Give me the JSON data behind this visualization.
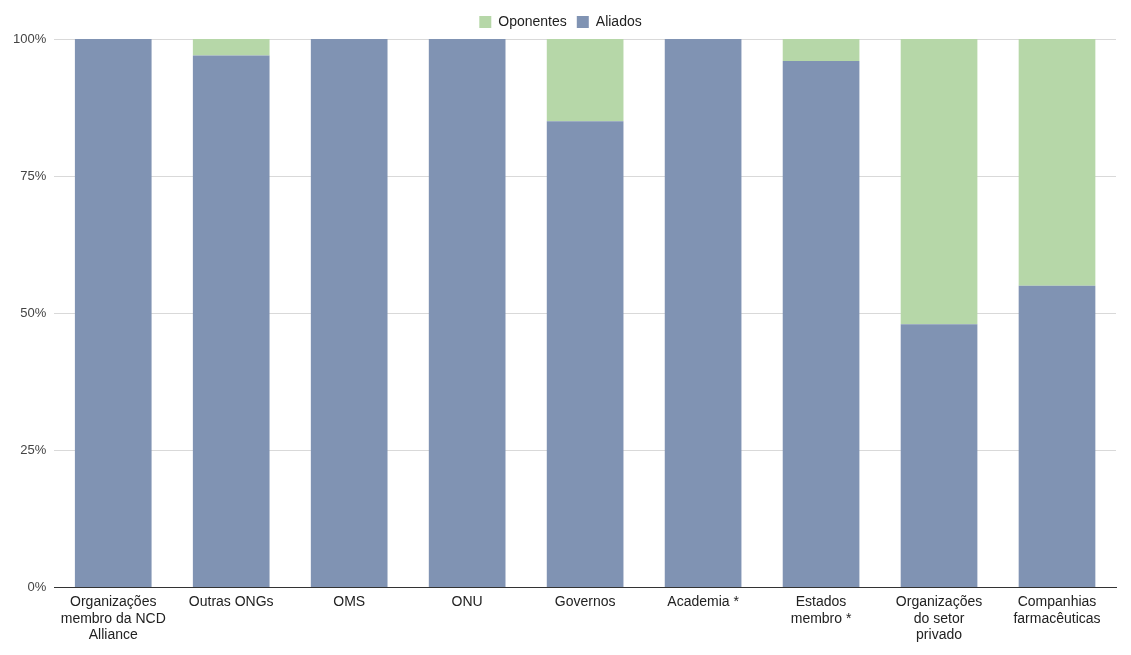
{
  "chart_data": {
    "type": "bar",
    "stacked": true,
    "categories": [
      "Organizações membro da NCD Alliance",
      "Outras ONGs",
      "OMS",
      "ONU",
      "Governos",
      "Academia *",
      "Estados membro *",
      "Organizações do setor privado",
      "Companhias farmacêuticas"
    ],
    "series": [
      {
        "name": "Aliados",
        "color": "#8093b3",
        "values": [
          100,
          97,
          100,
          100,
          85,
          100,
          96,
          48,
          55
        ]
      },
      {
        "name": "Oponentes",
        "color": "#b6d7a8",
        "values": [
          0,
          3,
          0,
          0,
          15,
          0,
          4,
          52,
          45
        ]
      }
    ],
    "ylim": [
      0,
      100
    ],
    "yticks": [
      {
        "value": 0,
        "label": "0%"
      },
      {
        "value": 25,
        "label": "25%"
      },
      {
        "value": 50,
        "label": "50%"
      },
      {
        "value": 75,
        "label": "75%"
      },
      {
        "value": 100,
        "label": "100%"
      }
    ],
    "grid": "y",
    "legend": "top"
  }
}
